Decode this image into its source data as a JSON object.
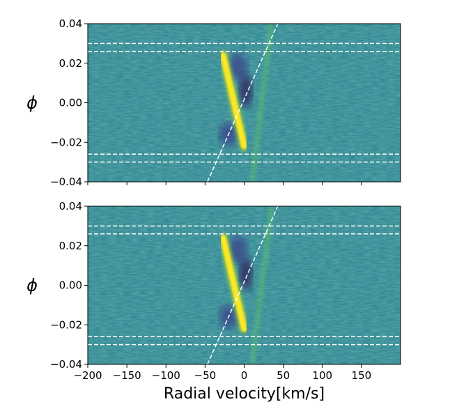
{
  "chart_data": [
    {
      "type": "heatmap",
      "colormap": "viridis",
      "xlabel": "",
      "ylabel": "ϕ",
      "xlim": [
        -200,
        200
      ],
      "ylim": [
        -0.04,
        0.04
      ],
      "xticks": [
        -200,
        -150,
        -100,
        -50,
        0,
        50,
        100,
        150
      ],
      "xtick_labels": [],
      "yticks": [
        0.04,
        0.02,
        0.0,
        -0.02,
        -0.04
      ],
      "ytick_labels": [
        "0.04",
        "0.02",
        "0.00",
        "−0.02",
        "−0.04"
      ],
      "horizontal_dashed_lines_phase": [
        0.03,
        0.026,
        -0.026,
        -0.03
      ],
      "diagonal_dashed_line": {
        "rv_at_phase_min": -47,
        "rv_at_phase_max": 43,
        "color": "#ffffff"
      },
      "signal_trail": {
        "rv_start": -27,
        "phase_start": 0.024,
        "rv_end": 0,
        "phase_end": -0.022,
        "color": "#fde725"
      }
    },
    {
      "type": "heatmap",
      "colormap": "viridis",
      "xlabel": "Radial velocity[km/s]",
      "ylabel": "ϕ",
      "xlim": [
        -200,
        200
      ],
      "ylim": [
        -0.04,
        0.04
      ],
      "xticks": [
        -200,
        -150,
        -100,
        -50,
        0,
        50,
        100,
        150
      ],
      "xtick_labels": [
        "−200",
        "−150",
        "−100",
        "−50",
        "0",
        "50",
        "100",
        "150"
      ],
      "yticks": [
        0.04,
        0.02,
        0.0,
        -0.02,
        -0.04
      ],
      "ytick_labels": [
        "0.04",
        "0.02",
        "0.00",
        "−0.02",
        "−0.04"
      ],
      "horizontal_dashed_lines_phase": [
        0.03,
        0.026,
        -0.026,
        -0.03
      ],
      "diagonal_dashed_line": {
        "rv_at_phase_min": -47,
        "rv_at_phase_max": 43,
        "color": "#ffffff"
      },
      "signal_trail": {
        "rv_start": -27,
        "phase_start": 0.024,
        "rv_end": 0,
        "phase_end": -0.022,
        "color": "#fde725"
      }
    }
  ]
}
